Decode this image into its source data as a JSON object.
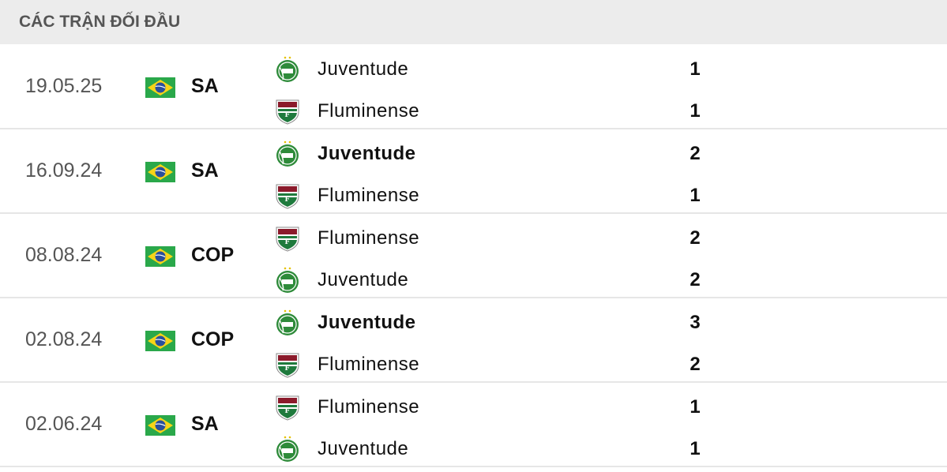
{
  "header": {
    "title": "CÁC TRẬN ĐỐI ĐẦU"
  },
  "colors": {
    "juventude": "#2e8b3a",
    "fluminense": "#8b1a2b",
    "flag_green": "#2aa84a",
    "flag_yellow": "#f7d417",
    "flag_blue": "#2a4f9c"
  },
  "matches": [
    {
      "date": "19.05.25",
      "competition": "SA",
      "flag": "brazil-flag",
      "teams": [
        {
          "name": "Juventude",
          "score": "1",
          "logo": "juventude",
          "winner": false
        },
        {
          "name": "Fluminense",
          "score": "1",
          "logo": "fluminense",
          "winner": false
        }
      ]
    },
    {
      "date": "16.09.24",
      "competition": "SA",
      "flag": "brazil-flag",
      "teams": [
        {
          "name": "Juventude",
          "score": "2",
          "logo": "juventude",
          "winner": true
        },
        {
          "name": "Fluminense",
          "score": "1",
          "logo": "fluminense",
          "winner": false
        }
      ]
    },
    {
      "date": "08.08.24",
      "competition": "COP",
      "flag": "brazil-flag",
      "teams": [
        {
          "name": "Fluminense",
          "score": "2",
          "logo": "fluminense",
          "winner": false
        },
        {
          "name": "Juventude",
          "score": "2",
          "logo": "juventude",
          "winner": false
        }
      ]
    },
    {
      "date": "02.08.24",
      "competition": "COP",
      "flag": "brazil-flag",
      "teams": [
        {
          "name": "Juventude",
          "score": "3",
          "logo": "juventude",
          "winner": true
        },
        {
          "name": "Fluminense",
          "score": "2",
          "logo": "fluminense",
          "winner": false
        }
      ]
    },
    {
      "date": "02.06.24",
      "competition": "SA",
      "flag": "brazil-flag",
      "teams": [
        {
          "name": "Fluminense",
          "score": "1",
          "logo": "fluminense",
          "winner": false
        },
        {
          "name": "Juventude",
          "score": "1",
          "logo": "juventude",
          "winner": false
        }
      ]
    }
  ]
}
